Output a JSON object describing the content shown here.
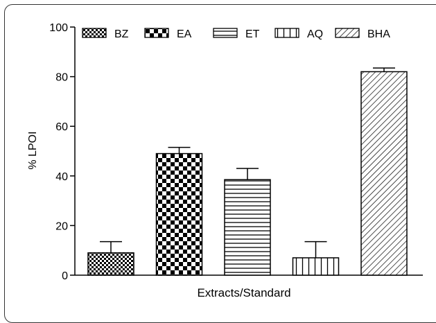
{
  "chart_data": {
    "type": "bar",
    "title": "",
    "xlabel": "Extracts/Standard",
    "ylabel": "% LPOI",
    "ylim": [
      0,
      100
    ],
    "yticks": [
      "0",
      "20",
      "40",
      "60",
      "80",
      "100"
    ],
    "grid": false,
    "legend_position": "top",
    "categories": [
      "BZ",
      "EA",
      "ET",
      "AQ",
      "BHA"
    ],
    "values": [
      9,
      49,
      38.5,
      7,
      82
    ],
    "errors": [
      4.5,
      2.5,
      4.5,
      6.5,
      1.5
    ],
    "patterns": [
      "fine-checker",
      "large-checker",
      "horizontal-lines",
      "vertical-lines",
      "diagonal-lines"
    ]
  }
}
